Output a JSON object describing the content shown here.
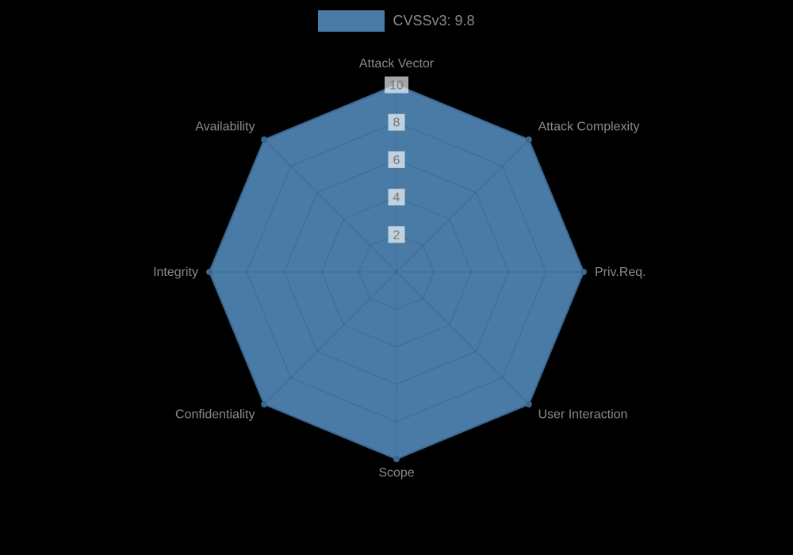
{
  "colors": {
    "background": "#000000",
    "series_fill": "#4a7ba7",
    "series_border": "#3a668f",
    "grid": "rgba(0,0,0,0.15)",
    "label_text": "#8a8a8a",
    "tick_text": "#777777",
    "tick_backdrop": "rgba(255,255,255,0.65)"
  },
  "chart_data": {
    "type": "radar",
    "title": "",
    "legend_position": "top",
    "grid": true,
    "rmax": 10,
    "ticks": [
      2,
      4,
      6,
      8,
      10
    ],
    "categories": [
      "Attack Vector",
      "Attack Complexity",
      "Priv.Req.",
      "User Interaction",
      "Scope",
      "Confidentiality",
      "Integrity",
      "Availability"
    ],
    "series": [
      {
        "name": "CVSSv3: 9.8",
        "values": [
          10,
          10,
          10,
          10,
          10,
          10,
          10,
          10
        ]
      }
    ]
  }
}
